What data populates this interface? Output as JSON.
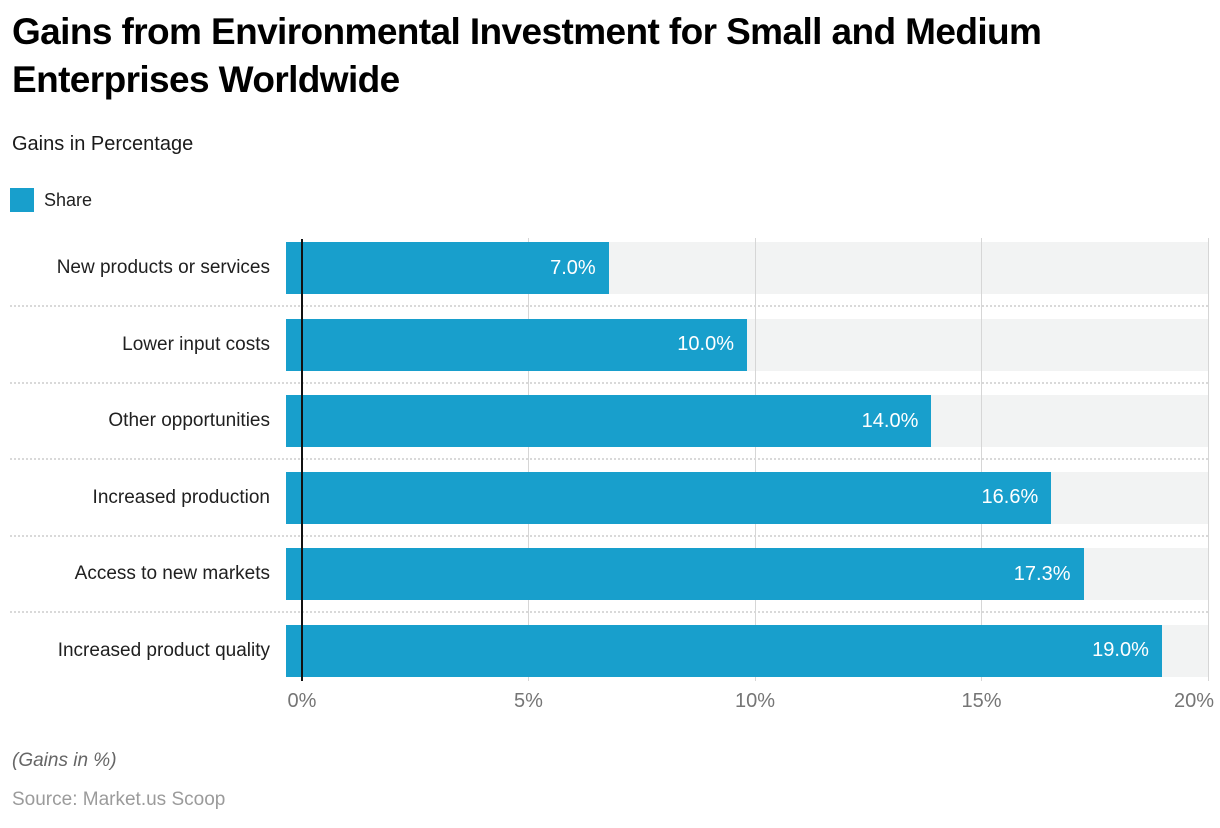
{
  "header": {
    "title": "Gains from Environmental Investment for Small and Medium Enterprises Worldwide",
    "subtitle": "Gains in Percentage",
    "legend": {
      "label": "Share",
      "swatch_color": "#189fcc"
    }
  },
  "chart_data": {
    "type": "bar",
    "orientation": "horizontal",
    "series_name": "Share",
    "categories": [
      "New products or services",
      "Lower input costs",
      "Other opportunities",
      "Increased production",
      "Access to new markets",
      "Increased product quality"
    ],
    "values": [
      7.0,
      10.0,
      14.0,
      16.6,
      17.3,
      19.0
    ],
    "value_labels": [
      "7.0%",
      "10.0%",
      "14.0%",
      "16.6%",
      "17.3%",
      "19.0%"
    ],
    "xlim": [
      0,
      20
    ],
    "ticks": [
      "0%",
      "5%",
      "10%",
      "15%",
      "20%"
    ],
    "xlabel": "",
    "ylabel": "",
    "grid": true,
    "legend_position": "top-left",
    "bar_color": "#189fcc",
    "track_color": "#f2f3f3",
    "gridline_color": "#d6d6d6"
  },
  "footer": {
    "note": "(Gains in %)",
    "source": "Source: Market.us Scoop"
  }
}
